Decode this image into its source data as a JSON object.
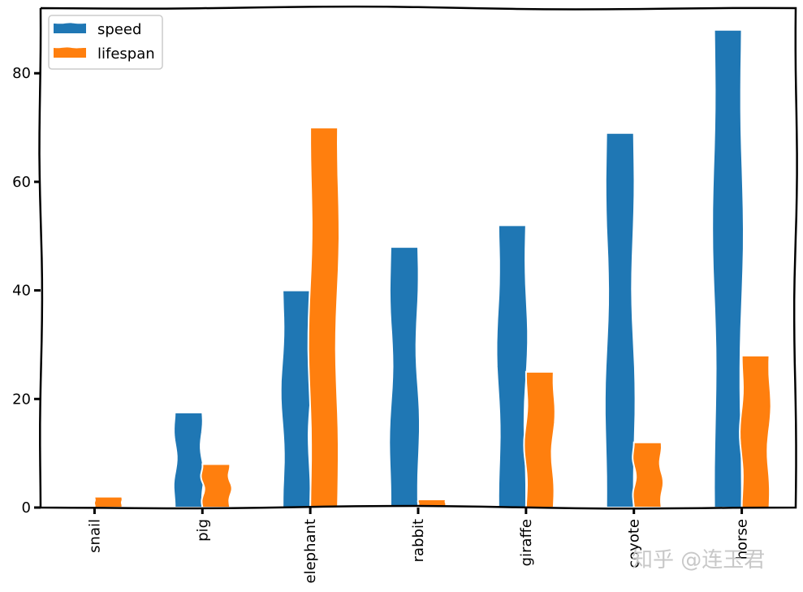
{
  "chart_data": {
    "type": "bar",
    "categories": [
      "snail",
      "pig",
      "elephant",
      "rabbit",
      "giraffe",
      "coyote",
      "horse"
    ],
    "series": [
      {
        "name": "speed",
        "color": "#1f77b4",
        "values": [
          0.1,
          17.5,
          40,
          48,
          52,
          69,
          88
        ]
      },
      {
        "name": "lifespan",
        "color": "#ff7f0e",
        "values": [
          2,
          8,
          70,
          1.5,
          25,
          12,
          28
        ]
      }
    ],
    "title": "",
    "xlabel": "",
    "ylabel": "",
    "ylim": [
      0,
      92
    ],
    "yticks": [
      0,
      20,
      40,
      60,
      80
    ],
    "grid": false,
    "legend_position": "top-left"
  },
  "watermark": "知乎 @连玉君"
}
